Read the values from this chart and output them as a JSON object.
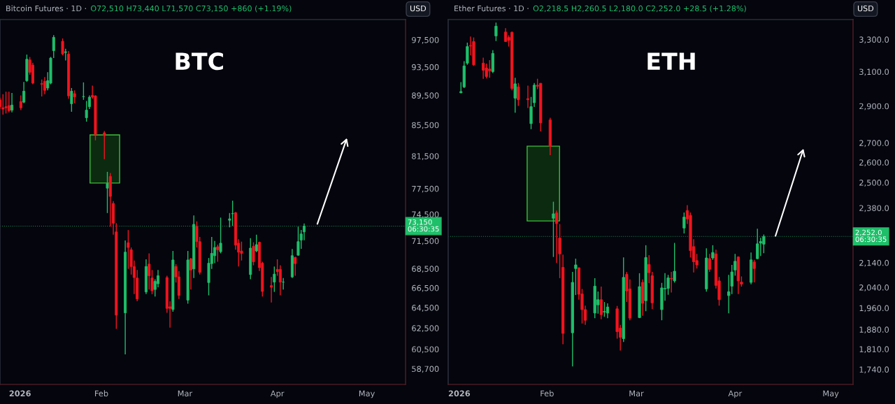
{
  "chart_data": [
    {
      "type": "candlestick",
      "title": "Bitcoin Futures · 1D ·",
      "subtitle": "O72,510 H73,440 L71,570 C73,150 +860 (+1.19%)",
      "annotations": [
        "BTC",
        "USD",
        "06:30:35"
      ],
      "colors": [
        "#f2141e",
        "#f2141e",
        "#f2141e",
        "#f2141e",
        "#1fbf6a",
        "#f2141e",
        "#1fbf6a",
        "#1fbf6a",
        "#f2141e",
        "#f2141e",
        "#f2141e",
        "#f2141e",
        "#1fbf6a",
        "#1fbf6a",
        "#1fbf6a",
        "#f2141e",
        "#1fbf6a",
        "#f2141e",
        "#1fbf6a",
        "#f2141e",
        "#1fbf6a",
        "#1fbf6a",
        "#1fbf6a",
        "#f2141e",
        "#f2141e",
        "#f2141e",
        "#1fbf6a",
        "#f2141e",
        "#f2141e",
        "#f2141e",
        "#1fbf6a",
        "#f2141e",
        "#f2141e",
        "#f2141e",
        "#f2141e",
        "#1fbf6a",
        "#f2141e",
        "#f2141e",
        "#1fbf6a",
        "#1fbf6a",
        "#f2141e",
        "#f2141e",
        "#1fbf6a",
        "#f2141e",
        "#f2141e",
        "#1fbf6a",
        "#f2141e",
        "#1fbf6a",
        "#f2141e",
        "#f2141e",
        "#1fbf6a",
        "#1fbf6a",
        "#1fbf6a",
        "#f2141e",
        "#1fbf6a",
        "#1fbf6a",
        "#1fbf6a",
        "#f2141e",
        "#f2141e",
        "#f2141e",
        "#1fbf6a",
        "#f2141e",
        "#1fbf6a",
        "#f2141e",
        "#f2141e",
        "#f2141e",
        "#1fbf6a",
        "#f2141e",
        "#f2141e",
        "#1fbf6a",
        "#1fbf6a",
        "#f2141e",
        "#1fbf6a",
        "#1fbf6a",
        "#1fbf6a"
      ],
      "x": [
        "2025-12-29",
        "2025-12-30",
        "2025-12-31",
        "2026-01-01",
        "2026-01-02",
        "2026-01-05",
        "2026-01-06",
        "2026-01-07",
        "2026-01-08",
        "2026-01-09",
        "2026-01-12",
        "2026-01-13",
        "2026-01-14",
        "2026-01-15",
        "2026-01-16",
        "2026-01-19",
        "2026-01-20",
        "2026-01-21",
        "2026-01-22",
        "2026-01-23",
        "2026-01-26",
        "2026-01-27",
        "2026-01-28",
        "2026-01-29",
        "2026-01-30",
        "2026-02-02",
        "2026-02-03",
        "2026-02-04",
        "2026-02-05",
        "2026-02-06",
        "2026-02-09",
        "2026-02-10",
        "2026-02-11",
        "2026-02-12",
        "2026-02-13",
        "2026-02-16",
        "2026-02-17",
        "2026-02-18",
        "2026-02-19",
        "2026-02-20",
        "2026-02-23",
        "2026-02-24",
        "2026-02-25",
        "2026-02-26",
        "2026-02-27",
        "2026-03-02",
        "2026-03-03",
        "2026-03-04",
        "2026-03-05",
        "2026-03-06",
        "2026-03-09",
        "2026-03-10",
        "2026-03-11",
        "2026-03-12",
        "2026-03-13",
        "2026-03-16",
        "2026-03-17",
        "2026-03-18",
        "2026-03-19",
        "2026-03-20",
        "2026-03-23",
        "2026-03-24",
        "2026-03-25",
        "2026-03-26",
        "2026-03-27",
        "2026-03-30",
        "2026-03-31",
        "2026-04-01",
        "2026-04-02",
        "2026-04-03",
        "2026-04-06",
        "2026-04-07",
        "2026-04-08",
        "2026-04-09",
        "2026-04-10"
      ],
      "ohlc": [
        [
          88880,
          89190,
          87630,
          87950
        ],
        [
          87800,
          89670,
          86880,
          87630
        ],
        [
          87950,
          90010,
          87030,
          87800
        ],
        [
          88100,
          90010,
          87190,
          87420
        ],
        [
          87480,
          89840,
          87190,
          88170
        ],
        [
          88660,
          89500,
          87480,
          87800
        ],
        [
          88570,
          91380,
          88410,
          90080
        ],
        [
          91550,
          95310,
          91380,
          94630
        ],
        [
          94530,
          94950,
          92400,
          92750
        ],
        [
          93780,
          94110,
          91040,
          91210
        ],
        [
          91140,
          91720,
          89340,
          91040
        ],
        [
          91450,
          92060,
          89670,
          90190
        ],
        [
          90520,
          92750,
          90190,
          91550
        ],
        [
          91210,
          94960,
          91040,
          94800
        ],
        [
          95890,
          98220,
          94800,
          97880
        ],
        [
          97290,
          97710,
          95210,
          95410
        ],
        [
          95620,
          96170,
          94450,
          95720
        ],
        [
          95380,
          95830,
          89040,
          89430
        ],
        [
          88350,
          90520,
          87260,
          90080
        ],
        [
          89740,
          90190,
          88410,
          89290
        ],
        [
          89320,
          91310,
          88880,
          89340
        ],
        [
          86460,
          88730,
          85940,
          87480
        ],
        [
          87950,
          89500,
          87630,
          89250
        ],
        [
          89500,
          90860,
          89040,
          89250
        ],
        [
          89430,
          89500,
          83500,
          84250
        ],
        [
          84470,
          84710,
          81100,
          84110
        ],
        [
          77560,
          79540,
          74640,
          78110
        ],
        [
          78970,
          79400,
          73090,
          76580
        ],
        [
          75750,
          76030,
          72190,
          73480
        ],
        [
          72500,
          73480,
          62430,
          63770
        ],
        [
          63990,
          71550,
          60020,
          70270
        ],
        [
          71300,
          72710,
          68480,
          70780
        ],
        [
          70530,
          70780,
          67880,
          68730
        ],
        [
          68730,
          69370,
          65860,
          67570
        ],
        [
          67520,
          68360,
          65140,
          65380
        ],
        [
          66090,
          69500,
          65860,
          68730
        ],
        [
          68990,
          70140,
          66340,
          67760
        ],
        [
          67520,
          68360,
          65860,
          66210
        ],
        [
          66340,
          67400,
          65620,
          67170
        ],
        [
          66930,
          68360,
          66570,
          67760
        ],
        [
          67570,
          67760,
          63990,
          64430
        ],
        [
          64590,
          65140,
          62550,
          64430
        ],
        [
          64320,
          70400,
          64100,
          69430
        ],
        [
          68730,
          68990,
          67050,
          67640
        ],
        [
          67640,
          68260,
          65380,
          65740
        ],
        [
          65260,
          70400,
          64900,
          69430
        ],
        [
          69560,
          69640,
          66340,
          68360
        ],
        [
          68480,
          74370,
          67520,
          73350
        ],
        [
          73090,
          73690,
          70780,
          71420
        ],
        [
          71420,
          71940,
          67880,
          68120
        ],
        [
          67050,
          69640,
          65740,
          69080
        ],
        [
          69040,
          71940,
          68480,
          70140
        ],
        [
          69890,
          71500,
          69080,
          70780
        ],
        [
          70860,
          71090,
          69240,
          70530
        ],
        [
          70320,
          74120,
          70140,
          71250
        ],
        [
          73810,
          74640,
          73010,
          73980
        ],
        [
          74560,
          76080,
          73180,
          74580
        ],
        [
          74680,
          74760,
          70530,
          71040
        ],
        [
          71250,
          71680,
          68730,
          70270
        ],
        [
          70400,
          71420,
          69370,
          70140
        ],
        [
          67880,
          71810,
          67400,
          70710
        ],
        [
          70910,
          71350,
          68860,
          69240
        ],
        [
          70400,
          72190,
          70270,
          71090
        ],
        [
          71350,
          71420,
          68260,
          68610
        ],
        [
          69080,
          69240,
          65620,
          66140
        ],
        [
          66740,
          67640,
          65020,
          66570
        ],
        [
          67100,
          68730,
          66090,
          67930
        ],
        [
          68430,
          69500,
          67760,
          68190
        ],
        [
          68430,
          68860,
          65740,
          67100
        ],
        [
          67100,
          67520,
          66340,
          67100
        ],
        [
          67640,
          70610,
          67520,
          69890
        ],
        [
          69710,
          69760,
          67760,
          69040
        ],
        [
          69940,
          73090,
          69890,
          71420
        ],
        [
          71600,
          72710,
          70630,
          72270
        ],
        [
          72510,
          73440,
          71570,
          73150
        ]
      ],
      "xlim": [
        "2025-12-29",
        "2026-05-14"
      ],
      "xticks": [
        {
          "value": "2026-01-01",
          "label": "2026"
        },
        {
          "value": "2026-02-01",
          "label": "Feb"
        },
        {
          "value": "2026-03-01",
          "label": "Mar"
        },
        {
          "value": "2026-04-01",
          "label": "Apr"
        },
        {
          "value": "2026-05-01",
          "label": "May"
        }
      ],
      "log": true,
      "ylim": [
        57300,
        100600
      ],
      "yticks": [
        {
          "value": 97500,
          "label": "97,500"
        },
        {
          "value": 93500,
          "label": "93,500"
        },
        {
          "value": 89500,
          "label": "89,500"
        },
        {
          "value": 85500,
          "label": "85,500"
        },
        {
          "value": 81500,
          "label": "81,500"
        },
        {
          "value": 77500,
          "label": "77,500"
        },
        {
          "value": 74500,
          "label": "74,500"
        },
        {
          "value": 71500,
          "label": "71,500"
        },
        {
          "value": 68500,
          "label": "68,500"
        },
        {
          "value": 66500,
          "label": "66,500"
        },
        {
          "value": 64500,
          "label": "64,500"
        },
        {
          "value": 62500,
          "label": "62,500"
        },
        {
          "value": 60500,
          "label": "60,500"
        },
        {
          "value": 58700,
          "label": "58,700"
        }
      ],
      "ref_lines": [
        {
          "axis": "y",
          "value": 73150,
          "label": "73,150",
          "color": "#1fbf6a",
          "line_style": "dotted"
        }
      ]
    },
    {
      "type": "candlestick",
      "title": "Ether Futures · 1D ·",
      "subtitle": "O2,218.5 H2,260.5 L2,180.0 C2,252.0 +28.5 (+1.28%)",
      "annotations": [
        "ETH",
        "USD",
        "06:30:35"
      ],
      "colors": [
        "#1fbf6a",
        "#1fbf6a",
        "#1fbf6a",
        "#f2141e",
        "#f2141e",
        "#f2141e",
        "#f2141e",
        "#f2141e",
        "#1fbf6a",
        "#1fbf6a",
        "#f2141e",
        "#f2141e",
        "#f2141e",
        "#1fbf6a",
        "#f2141e",
        "#f2141e",
        "#1fbf6a",
        "#1fbf6a",
        "#f2141e",
        "#f2141e",
        "#f2141e",
        "#1fbf6a",
        "#f2141e",
        "#f2141e",
        "#f2141e",
        "#1fbf6a",
        "#1fbf6a",
        "#f2141e",
        "#f2141e",
        "#f2141e",
        "#1fbf6a",
        "#1fbf6a",
        "#f2141e",
        "#1fbf6a",
        "#1fbf6a",
        "#f2141e",
        "#f2141e",
        "#1fbf6a",
        "#f2141e",
        "#f2141e",
        "#1fbf6a",
        "#f2141e",
        "#1fbf6a",
        "#f2141e",
        "#f2141e",
        "#1fbf6a",
        "#1fbf6a",
        "#1fbf6a",
        "#f2141e",
        "#1fbf6a",
        "#1fbf6a",
        "#f2141e",
        "#f2141e",
        "#f2141e",
        "#f2141e",
        "#1fbf6a",
        "#f2141e",
        "#1fbf6a",
        "#f2141e",
        "#f2141e",
        "#1fbf6a",
        "#1fbf6a",
        "#1fbf6a",
        "#f2141e",
        "#f2141e",
        "#1fbf6a",
        "#f2141e",
        "#1fbf6a",
        "#1fbf6a",
        "#1fbf6a"
      ],
      "x": [
        "2026-01-05",
        "2026-01-06",
        "2026-01-07",
        "2026-01-08",
        "2026-01-09",
        "2026-01-12",
        "2026-01-13",
        "2026-01-14",
        "2026-01-15",
        "2026-01-16",
        "2026-01-19",
        "2026-01-20",
        "2026-01-21",
        "2026-01-22",
        "2026-01-23",
        "2026-01-26",
        "2026-01-27",
        "2026-01-28",
        "2026-01-29",
        "2026-01-30",
        "2026-02-02",
        "2026-02-03",
        "2026-02-04",
        "2026-02-05",
        "2026-02-06",
        "2026-02-09",
        "2026-02-10",
        "2026-02-11",
        "2026-02-12",
        "2026-02-13",
        "2026-02-16",
        "2026-02-17",
        "2026-02-18",
        "2026-02-19",
        "2026-02-20",
        "2026-02-23",
        "2026-02-24",
        "2026-02-25",
        "2026-02-26",
        "2026-02-27",
        "2026-03-02",
        "2026-03-03",
        "2026-03-04",
        "2026-03-05",
        "2026-03-06",
        "2026-03-09",
        "2026-03-10",
        "2026-03-11",
        "2026-03-12",
        "2026-03-13",
        "2026-03-16",
        "2026-03-17",
        "2026-03-18",
        "2026-03-19",
        "2026-03-20",
        "2026-03-23",
        "2026-03-24",
        "2026-03-25",
        "2026-03-26",
        "2026-03-27",
        "2026-03-30",
        "2026-03-31",
        "2026-04-01",
        "2026-04-02",
        "2026-04-03",
        "2026-04-06",
        "2026-04-07",
        "2026-04-08",
        "2026-04-09",
        "2026-04-10"
      ],
      "ohlc": [
        [
          2976,
          3038,
          2973,
          2983
        ],
        [
          3010,
          3164,
          3003,
          3135
        ],
        [
          3152,
          3280,
          3142,
          3255
        ],
        [
          3262,
          3319,
          3200,
          3258
        ],
        [
          3287,
          3313,
          3135,
          3142
        ],
        [
          3152,
          3186,
          3058,
          3109
        ],
        [
          3123,
          3149,
          3060,
          3071
        ],
        [
          3116,
          3171,
          3064,
          3106
        ],
        [
          3101,
          3232,
          3092,
          3212
        ],
        [
          3323,
          3410,
          3290,
          3386
        ],
        [
          3348,
          3374,
          3284,
          3287
        ],
        [
          3313,
          3327,
          3255,
          3294
        ],
        [
          3346,
          3352,
          2990,
          3001
        ],
        [
          2945,
          3064,
          2863,
          3028
        ],
        [
          3010,
          3033,
          2901,
          2936
        ],
        [
          2942,
          3017,
          2889,
          2936
        ],
        [
          2803,
          2952,
          2773,
          2897
        ],
        [
          2919,
          3033,
          2895,
          3020
        ],
        [
          3020,
          3058,
          2997,
          3014
        ],
        [
          3031,
          3033,
          2761,
          2807
        ],
        [
          2823,
          2835,
          2637,
          2682
        ],
        [
          2333,
          2409,
          2164,
          2353
        ],
        [
          2357,
          2368,
          2139,
          2309
        ],
        [
          2245,
          2307,
          2077,
          2177
        ],
        [
          2121,
          2174,
          1827,
          1866
        ],
        [
          1868,
          2102,
          1750,
          2060
        ],
        [
          2116,
          2157,
          2010,
          2131
        ],
        [
          2119,
          2121,
          1992,
          2013
        ],
        [
          2014,
          2034,
          1902,
          1954
        ],
        [
          1954,
          1969,
          1897,
          1914
        ],
        [
          1941,
          2077,
          1922,
          2045
        ],
        [
          1972,
          2024,
          1939,
          1992
        ],
        [
          1992,
          2043,
          1918,
          1935
        ],
        [
          1945,
          1983,
          1927,
          1947
        ],
        [
          1941,
          1978,
          1922,
          1964
        ],
        [
          1957,
          1968,
          1847,
          1872
        ],
        [
          1885,
          1897,
          1805,
          1852
        ],
        [
          1847,
          2162,
          1835,
          2080
        ],
        [
          2092,
          2102,
          1983,
          2026
        ],
        [
          2034,
          2072,
          1914,
          1922
        ],
        [
          1924,
          2097,
          1922,
          2043
        ],
        [
          2060,
          2072,
          1931,
          1978
        ],
        [
          1988,
          2214,
          1948,
          2162
        ],
        [
          2133,
          2172,
          2057,
          2099
        ],
        [
          2087,
          2102,
          1956,
          1980
        ],
        [
          1954,
          2058,
          1914,
          2038
        ],
        [
          2034,
          2097,
          1988,
          2036
        ],
        [
          2036,
          2090,
          2011,
          2078
        ],
        [
          2076,
          2102,
          2020,
          2074
        ],
        [
          2066,
          2224,
          2059,
          2105
        ],
        [
          2289,
          2359,
          2265,
          2338
        ],
        [
          2368,
          2393,
          2307,
          2330
        ],
        [
          2346,
          2359,
          2162,
          2191
        ],
        [
          2208,
          2240,
          2100,
          2144
        ],
        [
          2149,
          2177,
          2116,
          2131
        ],
        [
          2034,
          2201,
          2023,
          2160
        ],
        [
          2157,
          2177,
          2102,
          2113
        ],
        [
          2160,
          2214,
          2152,
          2183
        ],
        [
          2177,
          2195,
          2036,
          2048
        ],
        [
          2066,
          2082,
          1969,
          1992
        ],
        [
          2008,
          2090,
          1940,
          2023
        ],
        [
          2045,
          2131,
          2014,
          2102
        ],
        [
          2110,
          2177,
          2087,
          2146
        ],
        [
          2164,
          2167,
          2014,
          2066
        ],
        [
          2061,
          2084,
          2043,
          2053
        ],
        [
          2060,
          2183,
          2052,
          2152
        ],
        [
          2143,
          2152,
          2060,
          2116
        ],
        [
          2157,
          2286,
          2155,
          2220
        ],
        [
          2223,
          2246,
          2168,
          2230
        ],
        [
          2218.5,
          2260.5,
          2180,
          2252
        ]
      ],
      "xlim": [
        "2026-01-01",
        "2026-05-08"
      ],
      "xticks": [
        {
          "value": "2026-01-01",
          "label": "2026"
        },
        {
          "value": "2026-02-01",
          "label": "Feb"
        },
        {
          "value": "2026-03-01",
          "label": "Mar"
        },
        {
          "value": "2026-04-01",
          "label": "Apr"
        },
        {
          "value": "2026-05-01",
          "label": "May"
        }
      ],
      "log": true,
      "ylim": [
        1690,
        3430
      ],
      "yticks": [
        {
          "value": 3300,
          "label": "3,300.0"
        },
        {
          "value": 3100,
          "label": "3,100.0"
        },
        {
          "value": 2900,
          "label": "2,900.0"
        },
        {
          "value": 2700,
          "label": "2,700.0"
        },
        {
          "value": 2600,
          "label": "2,600.0"
        },
        {
          "value": 2500,
          "label": "2,500.0"
        },
        {
          "value": 2380,
          "label": "2,380.0"
        },
        {
          "value": 2140,
          "label": "2,140.0"
        },
        {
          "value": 2040,
          "label": "2,040.0"
        },
        {
          "value": 1960,
          "label": "1,960.0"
        },
        {
          "value": 1880,
          "label": "1,880.0"
        },
        {
          "value": 1810,
          "label": "1,810.0"
        },
        {
          "value": 1740,
          "label": "1,740.0"
        }
      ],
      "ref_lines": [
        {
          "axis": "y",
          "value": 2252.0,
          "label": "2,252.0",
          "color": "#1fbf6a",
          "line_style": "dotted"
        }
      ]
    }
  ]
}
